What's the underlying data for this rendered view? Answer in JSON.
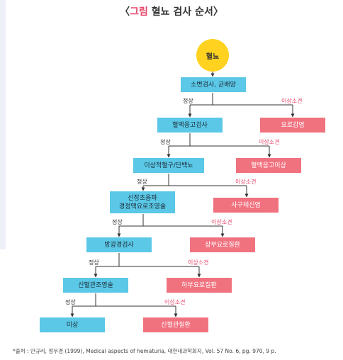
{
  "title": {
    "open": "〈",
    "prefix": "그림",
    "rest": " 혈뇨 검사 순서",
    "close": "〉"
  },
  "start": "혈뇨",
  "first_test": "소변검사, 균배양",
  "label_normal": "정상",
  "label_abnormal": "이상소견",
  "steps": [
    {
      "test": "혈액응고검사",
      "finding": "요로감염"
    },
    {
      "test": "이상적혈구/단백뇨",
      "finding": "혈액응고이상"
    },
    {
      "test_line1": "신장초음파",
      "test_line2": "경정맥요로조영술",
      "finding": "사구체신염"
    },
    {
      "test": "방광경검사",
      "finding": "상부요로질환"
    },
    {
      "test": "신혈관조영술",
      "finding": "하부요로질환"
    },
    {
      "test": "미상",
      "finding": "신혈관질환"
    }
  ],
  "footnote": "*출처 : 안규리, 정우경 (1999), Medical aspects of hematuria, 대한내과학회지, Vol. 57 No. 6, pg. 970, 9 p."
}
